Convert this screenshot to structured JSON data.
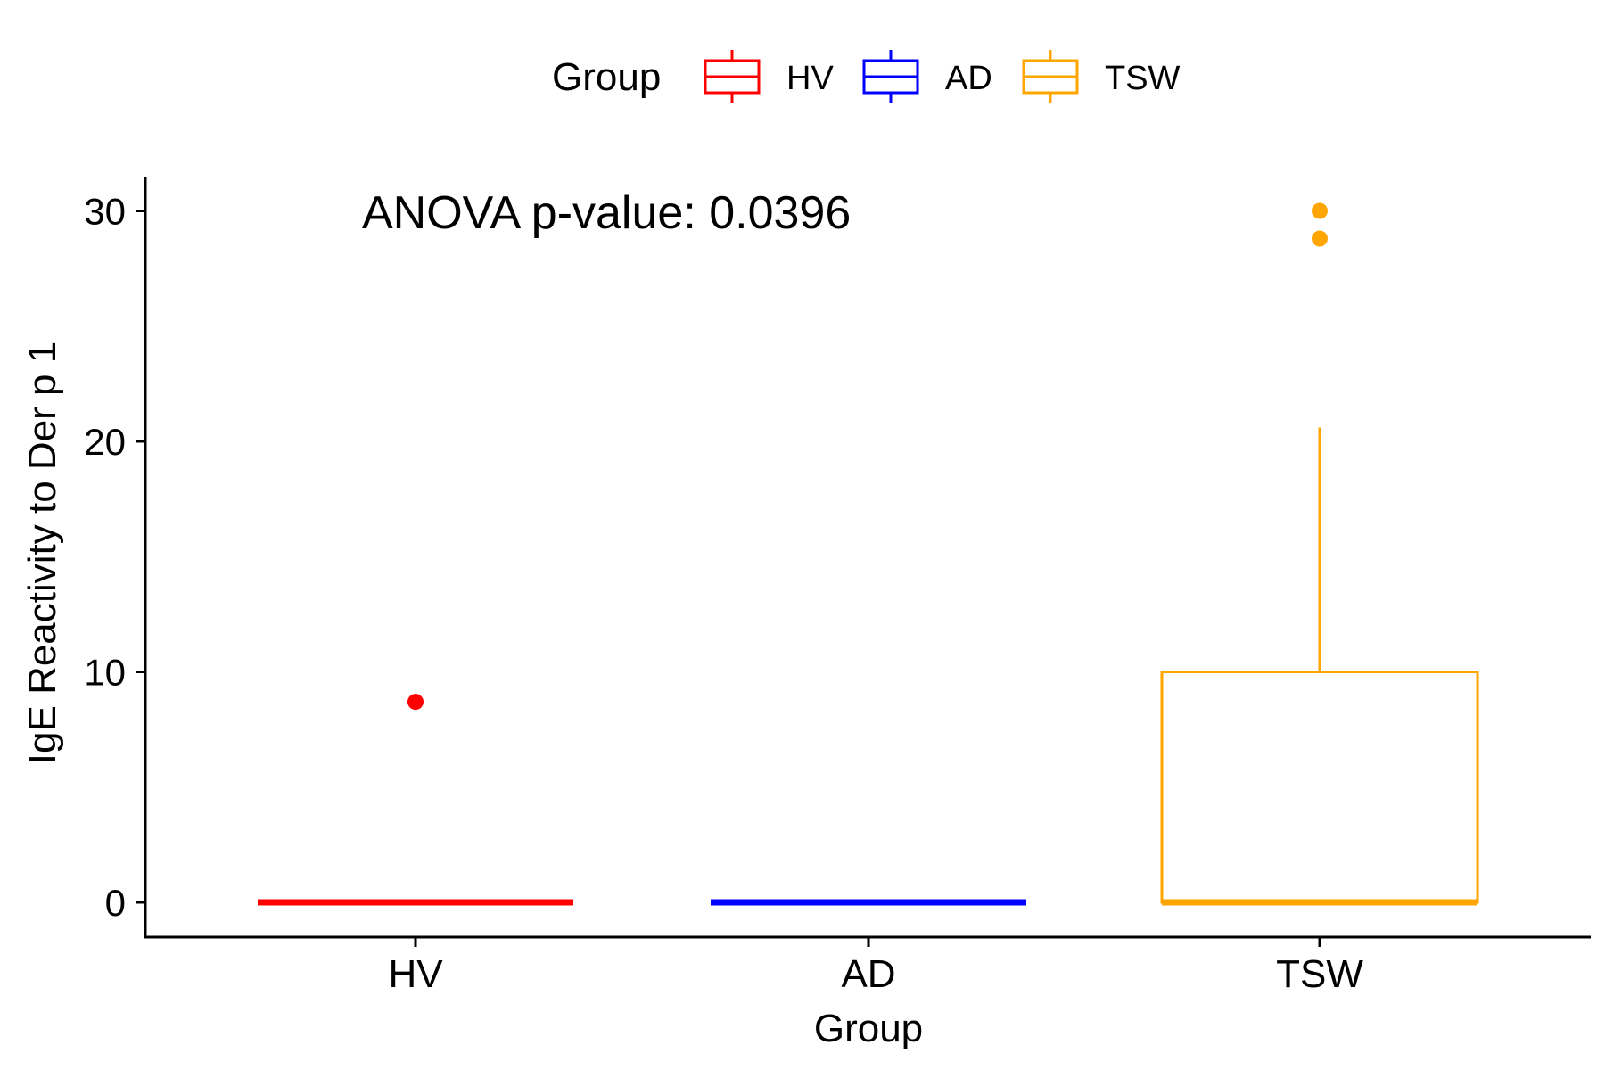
{
  "chart_data": {
    "type": "box",
    "xlabel": "Group",
    "ylabel": "IgE Reactivity to Der p 1",
    "ylim": [
      -1.5,
      31.5
    ],
    "yticks": [
      0,
      10,
      20,
      30
    ],
    "categories": [
      "HV",
      "AD",
      "TSW"
    ],
    "colors": {
      "HV": "#ff0000",
      "AD": "#0000ff",
      "TSW": "#ffa500"
    },
    "legend": {
      "title": "Group",
      "position": "top",
      "entries": [
        "HV",
        "AD",
        "TSW"
      ]
    },
    "annotation": "ANOVA p-value: 0.0396",
    "grid": false,
    "boxes": [
      {
        "group": "HV",
        "min": 0,
        "q1": 0,
        "median": 0,
        "q3": 0,
        "max": 0,
        "outliers": [
          8.7
        ]
      },
      {
        "group": "AD",
        "min": 0,
        "q1": 0,
        "median": 0,
        "q3": 0,
        "max": 0,
        "outliers": []
      },
      {
        "group": "TSW",
        "min": 0,
        "q1": 0,
        "median": 0,
        "q3": 10,
        "max": 20.6,
        "outliers": [
          30.0,
          28.8
        ]
      }
    ]
  }
}
